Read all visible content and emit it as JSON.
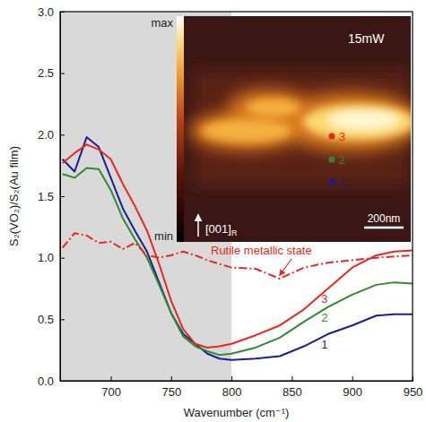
{
  "chart_data": {
    "type": "line",
    "x_label": "Wavenumber (cm⁻¹)",
    "y_label": "S₂(VO₂)/S₂(Au film)",
    "x": [
      660,
      670,
      680,
      690,
      700,
      710,
      720,
      730,
      740,
      750,
      760,
      770,
      780,
      790,
      800,
      820,
      840,
      860,
      880,
      900,
      920,
      935,
      950
    ],
    "series": [
      {
        "name": "1",
        "color": "#1c1c96",
        "line_style": "solid",
        "values": [
          1.8,
          1.7,
          1.98,
          1.9,
          1.65,
          1.4,
          1.22,
          1.05,
          0.8,
          0.55,
          0.38,
          0.3,
          0.22,
          0.18,
          0.17,
          0.18,
          0.2,
          0.28,
          0.38,
          0.45,
          0.53,
          0.54,
          0.54
        ]
      },
      {
        "name": "2",
        "color": "#2e8b2e",
        "line_style": "solid",
        "values": [
          1.68,
          1.65,
          1.73,
          1.72,
          1.55,
          1.32,
          1.15,
          1.0,
          0.78,
          0.55,
          0.36,
          0.28,
          0.24,
          0.21,
          0.22,
          0.27,
          0.35,
          0.48,
          0.6,
          0.7,
          0.78,
          0.8,
          0.79
        ]
      },
      {
        "name": "3",
        "color": "#e8281e",
        "line_style": "solid",
        "values": [
          1.77,
          1.85,
          1.92,
          1.88,
          1.8,
          1.6,
          1.42,
          1.22,
          0.95,
          0.65,
          0.42,
          0.3,
          0.27,
          0.28,
          0.3,
          0.37,
          0.45,
          0.58,
          0.75,
          0.92,
          1.02,
          1.05,
          1.06
        ]
      },
      {
        "name": "Rutile metallic state",
        "color": "#e8281e",
        "line_style": "dashdot",
        "values": [
          1.08,
          1.2,
          1.18,
          1.12,
          1.13,
          1.07,
          1.12,
          1.02,
          1.0,
          1.02,
          1.05,
          1.02,
          0.98,
          0.95,
          0.92,
          0.91,
          0.83,
          0.92,
          0.96,
          0.98,
          1.0,
          1.01,
          1.02
        ]
      }
    ],
    "xlim": [
      658,
      950
    ],
    "xticks": [
      700,
      750,
      800,
      850,
      900,
      950
    ],
    "ylim": [
      0,
      3
    ],
    "yticks": [
      {
        "value": 0,
        "label": "0.0"
      },
      {
        "value": 0.5,
        "label": "0.5"
      },
      {
        "value": 1,
        "label": "1.0"
      },
      {
        "value": 1.5,
        "label": "1.5"
      },
      {
        "value": 2,
        "label": "2.0"
      },
      {
        "value": 2.5,
        "label": "2.5"
      },
      {
        "value": 3,
        "label": "3.0"
      }
    ],
    "shaded_x": [
      658,
      800
    ],
    "inset": {
      "colorbar_labels": [
        "max",
        "min"
      ],
      "power": "15mW",
      "direction_label": "[001]",
      "direction_subscript": "R",
      "scale_bar": "200nm"
    }
  }
}
